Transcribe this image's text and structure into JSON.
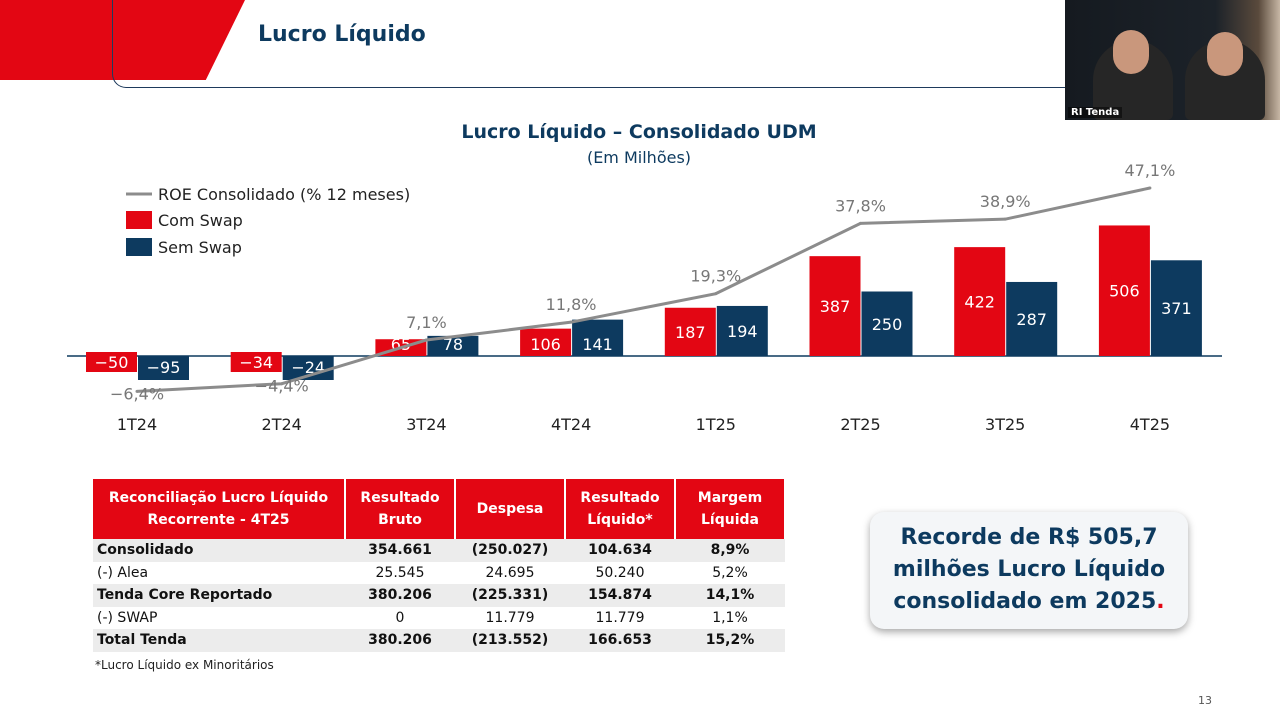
{
  "slide": {
    "title": "Lucro Líquido",
    "page_number": "13"
  },
  "webcam": {
    "label": "RI Tenda"
  },
  "chart_data": {
    "type": "bar",
    "title": "Lucro Líquido – Consolidado UDM",
    "subtitle": "(Em Milhões)",
    "categories": [
      "1T24",
      "2T24",
      "3T24",
      "4T24",
      "1T25",
      "2T25",
      "3T25",
      "4T25"
    ],
    "series": [
      {
        "name": "Com Swap",
        "type": "bar",
        "color": "#e30613",
        "values": [
          -50,
          -34,
          65,
          106,
          187,
          387,
          422,
          506
        ]
      },
      {
        "name": "Sem Swap",
        "type": "bar",
        "color": "#0d3a5f",
        "values": [
          -95,
          -24,
          78,
          141,
          194,
          250,
          287,
          371
        ]
      },
      {
        "name": "ROE Consolidado (% 12 meses)",
        "type": "line",
        "color": "#8c8c8c",
        "values": [
          -6.4,
          -4.4,
          7.1,
          11.8,
          19.3,
          37.8,
          38.9,
          47.1
        ],
        "labels": [
          "-6,4%",
          "-4,4%",
          "7,1%",
          "11,8%",
          "19,3%",
          "37,8%",
          "38,9%",
          "47,1%"
        ]
      }
    ],
    "legend": "top-left",
    "grid": false
  },
  "table": {
    "headers": [
      "Reconciliação Lucro Líquido Recorrente - 4T25",
      "Resultado Bruto",
      "Despesa",
      "Resultado Líquido*",
      "Margem Líquida"
    ],
    "rows": [
      [
        "Consolidado",
        "354.661",
        "(250.027)",
        "104.634",
        "8,9%"
      ],
      [
        "(-) Alea",
        "25.545",
        "24.695",
        "50.240",
        "5,2%"
      ],
      [
        "Tenda Core Reportado",
        "380.206",
        "(225.331)",
        "154.874",
        "14,1%"
      ],
      [
        "(-) SWAP",
        "0",
        "11.779",
        "11.779",
        "1,1%"
      ],
      [
        "Total Tenda",
        "380.206",
        "(213.552)",
        "166.653",
        "15,2%"
      ]
    ],
    "footnote": "*Lucro Líquido ex Minoritários"
  },
  "callout": {
    "text": "Recorde de R$ 505,7 milhões Lucro Líquido consolidado em 2025",
    "dot": "."
  }
}
